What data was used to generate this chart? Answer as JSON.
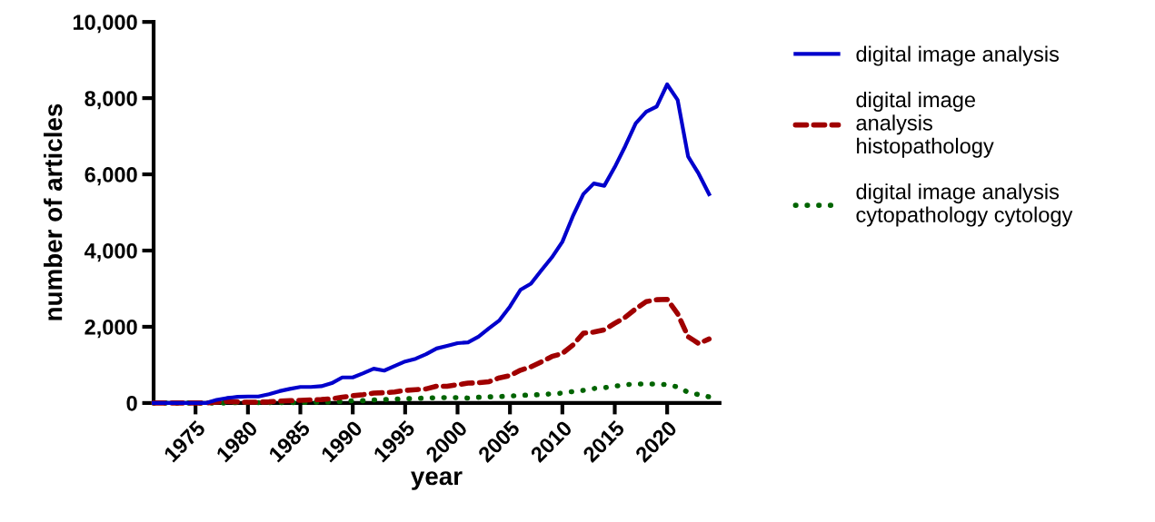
{
  "chart_data": {
    "type": "line",
    "xlabel": "year",
    "ylabel": "number of articles",
    "x": [
      1971,
      1972,
      1973,
      1974,
      1975,
      1976,
      1977,
      1978,
      1979,
      1980,
      1981,
      1982,
      1983,
      1984,
      1985,
      1986,
      1987,
      1988,
      1989,
      1990,
      1991,
      1992,
      1993,
      1994,
      1995,
      1996,
      1997,
      1998,
      1999,
      2000,
      2001,
      2002,
      2003,
      2004,
      2005,
      2006,
      2007,
      2008,
      2009,
      2010,
      2011,
      2012,
      2013,
      2014,
      2015,
      2016,
      2017,
      2018,
      2019,
      2020,
      2021,
      2022,
      2023,
      2024
    ],
    "series": [
      {
        "name": "digital image analysis",
        "color": "#0000cc",
        "line_style": "solid",
        "values": [
          0,
          0,
          0,
          0,
          0,
          0,
          80,
          130,
          160,
          170,
          170,
          230,
          310,
          370,
          420,
          420,
          440,
          520,
          670,
          670,
          780,
          900,
          850,
          970,
          1090,
          1160,
          1280,
          1430,
          1500,
          1570,
          1590,
          1740,
          1960,
          2170,
          2530,
          2970,
          3130,
          3480,
          3820,
          4230,
          4900,
          5480,
          5760,
          5700,
          6190,
          6740,
          7340,
          7640,
          7780,
          8360,
          7950,
          6470,
          6020,
          5480
        ]
      },
      {
        "name": "digital image\nanalysis\nhistopathology",
        "color": "#a00000",
        "line_style": "dashed",
        "values": [
          0,
          0,
          0,
          0,
          0,
          0,
          20,
          40,
          30,
          20,
          20,
          30,
          50,
          60,
          70,
          80,
          90,
          110,
          150,
          190,
          220,
          260,
          270,
          290,
          330,
          350,
          370,
          440,
          440,
          480,
          520,
          530,
          560,
          660,
          720,
          860,
          950,
          1080,
          1220,
          1300,
          1520,
          1830,
          1860,
          1920,
          2090,
          2250,
          2470,
          2660,
          2710,
          2720,
          2340,
          1740,
          1560,
          1680
        ]
      },
      {
        "name": "digital image analysis\ncytopathology cytology",
        "color": "#006400",
        "line_style": "dotted",
        "values": [
          0,
          0,
          0,
          0,
          0,
          0,
          0,
          0,
          10,
          10,
          10,
          10,
          10,
          10,
          10,
          20,
          20,
          30,
          40,
          60,
          60,
          80,
          90,
          100,
          110,
          120,
          130,
          140,
          140,
          140,
          130,
          150,
          160,
          170,
          180,
          200,
          210,
          220,
          240,
          260,
          300,
          330,
          380,
          400,
          440,
          480,
          500,
          500,
          500,
          480,
          420,
          280,
          220,
          160
        ]
      }
    ],
    "xlim": [
      1971,
      2025
    ],
    "xticks": [
      1975,
      1980,
      1985,
      1990,
      1995,
      2000,
      2005,
      2010,
      2015,
      2020
    ],
    "ylim": [
      0,
      10000
    ],
    "yticks": [
      {
        "value": 0,
        "label": "0"
      },
      {
        "value": 2000,
        "label": "2,000"
      },
      {
        "value": 4000,
        "label": "4,000"
      },
      {
        "value": 6000,
        "label": "6,000"
      },
      {
        "value": 8000,
        "label": "8,000"
      },
      {
        "value": 10000,
        "label": "10,000"
      }
    ],
    "grid": false,
    "legend": "right",
    "marker": "none"
  }
}
